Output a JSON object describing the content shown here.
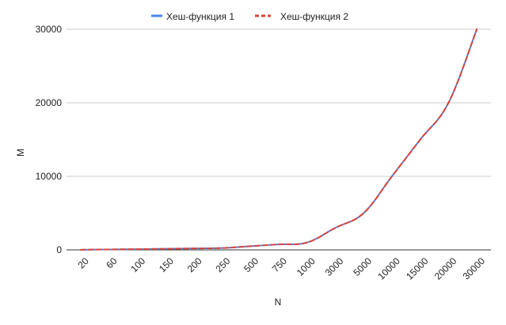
{
  "chart_data": {
    "type": "line",
    "title": "",
    "xlabel": "N",
    "ylabel": "M",
    "categories": [
      "20",
      "60",
      "100",
      "150",
      "200",
      "250",
      "500",
      "750",
      "1000",
      "3000",
      "5000",
      "10000",
      "15000",
      "20000",
      "30000"
    ],
    "ylim": [
      0,
      30000
    ],
    "yticks": [
      "0",
      "10000",
      "20000",
      "30000"
    ],
    "grid": true,
    "legend_position": "top",
    "series": [
      {
        "name": "Хеш-функция 1",
        "color": "#4a86e8",
        "style": "solid",
        "values": [
          20,
          60,
          100,
          150,
          200,
          250,
          500,
          750,
          1000,
          3000,
          5000,
          10000,
          15000,
          20000,
          30000
        ]
      },
      {
        "name": "Хеш-функция 2",
        "color": "#db4437",
        "style": "dashed",
        "values": [
          20,
          60,
          100,
          150,
          200,
          250,
          500,
          750,
          1000,
          3000,
          5000,
          10000,
          15000,
          20000,
          30000
        ]
      }
    ]
  }
}
